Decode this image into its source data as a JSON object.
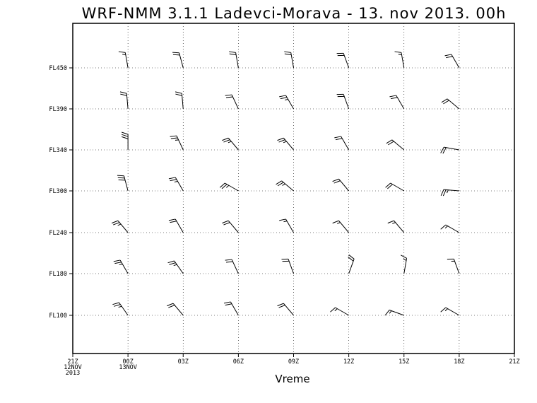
{
  "chart_data": {
    "type": "wind-barb",
    "title": "WRF-NMM 3.1.1 Ladevci-Morava - 13. nov 2013. 00h",
    "xlabel": "Vreme",
    "ylabel": "",
    "x_ticks": [
      {
        "label": "21Z",
        "sub": [
          "12NOV",
          "2013"
        ]
      },
      {
        "label": "00Z",
        "sub": [
          "13NOV"
        ]
      },
      {
        "label": "03Z",
        "sub": []
      },
      {
        "label": "06Z",
        "sub": []
      },
      {
        "label": "09Z",
        "sub": []
      },
      {
        "label": "12Z",
        "sub": []
      },
      {
        "label": "15Z",
        "sub": []
      },
      {
        "label": "18Z",
        "sub": []
      },
      {
        "label": "21Z",
        "sub": []
      }
    ],
    "y_ticks": [
      "FL100",
      "FL180",
      "FL240",
      "FL300",
      "FL340",
      "FL390",
      "FL450"
    ],
    "grid": true,
    "barb_times": [
      "00Z",
      "03Z",
      "06Z",
      "09Z",
      "12Z",
      "15Z",
      "18Z"
    ],
    "barbs": [
      {
        "level": "FL450",
        "dir": [
          350,
          345,
          350,
          350,
          340,
          350,
          330
        ],
        "speed_kt": [
          15,
          20,
          20,
          20,
          20,
          15,
          20
        ]
      },
      {
        "level": "FL390",
        "dir": [
          355,
          355,
          335,
          330,
          340,
          330,
          310
        ],
        "speed_kt": [
          20,
          20,
          20,
          25,
          20,
          20,
          20
        ]
      },
      {
        "level": "FL340",
        "dir": [
          360,
          335,
          320,
          320,
          330,
          310,
          280
        ],
        "speed_kt": [
          30,
          25,
          25,
          25,
          20,
          20,
          20
        ]
      },
      {
        "level": "FL300",
        "dir": [
          345,
          330,
          300,
          310,
          320,
          300,
          275
        ],
        "speed_kt": [
          30,
          25,
          25,
          25,
          20,
          20,
          25
        ]
      },
      {
        "level": "FL240",
        "dir": [
          320,
          330,
          320,
          330,
          320,
          320,
          300
        ],
        "speed_kt": [
          25,
          20,
          20,
          15,
          15,
          15,
          15
        ]
      },
      {
        "level": "FL180",
        "dir": [
          330,
          325,
          335,
          340,
          20,
          10,
          340
        ],
        "speed_kt": [
          25,
          25,
          20,
          20,
          20,
          15,
          15
        ]
      },
      {
        "level": "FL100",
        "dir": [
          325,
          320,
          330,
          320,
          300,
          290,
          300
        ],
        "speed_kt": [
          25,
          20,
          20,
          20,
          15,
          15,
          15
        ]
      }
    ]
  }
}
